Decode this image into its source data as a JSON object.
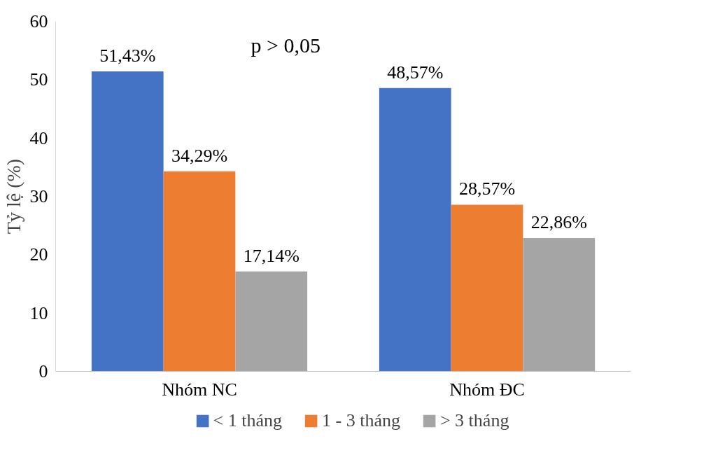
{
  "chart_data": {
    "type": "bar",
    "ylabel": "Tỷ lệ (%)",
    "categories": [
      "Nhóm NC",
      "Nhóm ĐC"
    ],
    "series": [
      {
        "name": "< 1 tháng",
        "color": "#4472c4",
        "values": [
          51.43,
          48.57
        ],
        "value_labels": [
          "51,43%",
          "48,57%"
        ]
      },
      {
        "name": "1 - 3 tháng",
        "color": "#ed7d31",
        "values": [
          34.29,
          28.57
        ],
        "value_labels": [
          "34,29%",
          "28,57%"
        ]
      },
      {
        "name": "> 3 tháng",
        "color": "#a5a5a5",
        "values": [
          17.14,
          22.86
        ],
        "value_labels": [
          "17,14%",
          "22,86%"
        ]
      }
    ],
    "ylim": [
      0,
      60
    ],
    "yticks": [
      0,
      10,
      20,
      30,
      40,
      50,
      60
    ],
    "grid": false,
    "legend": "bottom",
    "annotations": [
      "p > 0,05"
    ]
  }
}
